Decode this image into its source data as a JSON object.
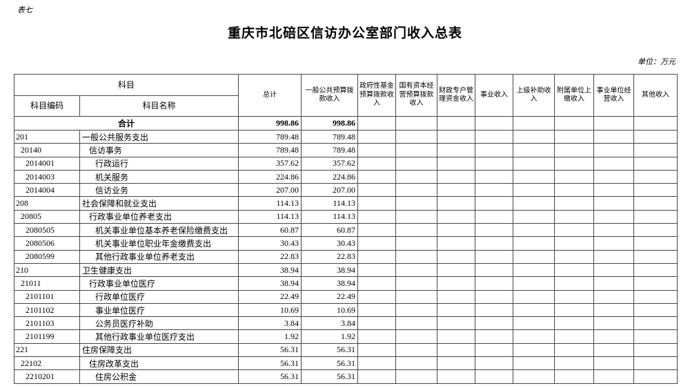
{
  "page": {
    "sheet_label": "表七",
    "title": "重庆市北碚区信访办公室部门收入总表",
    "unit_note": "单位：万元"
  },
  "colors": {
    "background": "#ffffff",
    "text": "#000000",
    "table_border": "#454545"
  },
  "table": {
    "header": {
      "subject_group": "科目",
      "subject_code": "科目编码",
      "subject_name": "科目名称",
      "value_columns": [
        "总计",
        "一般公共预算拨款收入",
        "政府性基金预算拨款收入",
        "国有资本经营预算拨款收入",
        "财政专户管理资金收入",
        "事业收入",
        "上级补助收入",
        "附属单位上缴收入",
        "事业单位经营收入",
        "其他收入"
      ]
    },
    "total_row": {
      "label": "合计",
      "values": [
        "998.86",
        "998.86",
        "",
        "",
        "",
        "",
        "",
        "",
        "",
        ""
      ]
    },
    "rows": [
      {
        "code": "201",
        "name": "一般公共服务支出",
        "level": 1,
        "values": [
          "789.48",
          "789.48"
        ]
      },
      {
        "code": "20140",
        "name": "信访事务",
        "level": 2,
        "values": [
          "789.48",
          "789.48"
        ]
      },
      {
        "code": "2014001",
        "name": "行政运行",
        "level": 3,
        "values": [
          "357.62",
          "357.62"
        ]
      },
      {
        "code": "2014003",
        "name": "机关服务",
        "level": 3,
        "values": [
          "224.86",
          "224.86"
        ]
      },
      {
        "code": "2014004",
        "name": "信访业务",
        "level": 3,
        "values": [
          "207.00",
          "207.00"
        ]
      },
      {
        "code": "208",
        "name": "社会保障和就业支出",
        "level": 1,
        "values": [
          "114.13",
          "114.13"
        ]
      },
      {
        "code": "20805",
        "name": "行政事业单位养老支出",
        "level": 2,
        "values": [
          "114.13",
          "114.13"
        ]
      },
      {
        "code": "2080505",
        "name": "机关事业单位基本养老保险缴费支出",
        "level": 3,
        "values": [
          "60.87",
          "60.87"
        ]
      },
      {
        "code": "2080506",
        "name": "机关事业单位职业年金缴费支出",
        "level": 3,
        "values": [
          "30.43",
          "30.43"
        ]
      },
      {
        "code": "2080599",
        "name": "其他行政事业单位养老支出",
        "level": 3,
        "values": [
          "22.83",
          "22.83"
        ]
      },
      {
        "code": "210",
        "name": "卫生健康支出",
        "level": 1,
        "values": [
          "38.94",
          "38.94"
        ]
      },
      {
        "code": "21011",
        "name": "行政事业单位医疗",
        "level": 2,
        "values": [
          "38.94",
          "38.94"
        ]
      },
      {
        "code": "2101101",
        "name": "行政单位医疗",
        "level": 3,
        "values": [
          "22.49",
          "22.49"
        ]
      },
      {
        "code": "2101102",
        "name": "事业单位医疗",
        "level": 3,
        "values": [
          "10.69",
          "10.69"
        ]
      },
      {
        "code": "2101103",
        "name": "公务员医疗补助",
        "level": 3,
        "values": [
          "3.84",
          "3.84"
        ]
      },
      {
        "code": "2101199",
        "name": "其他行政事业单位医疗支出",
        "level": 3,
        "values": [
          "1.92",
          "1.92"
        ]
      },
      {
        "code": "221",
        "name": "住房保障支出",
        "level": 1,
        "values": [
          "56.31",
          "56.31"
        ]
      },
      {
        "code": "22102",
        "name": "住房改革支出",
        "level": 2,
        "values": [
          "56.31",
          "56.31"
        ]
      },
      {
        "code": "2210201",
        "name": "住房公积金",
        "level": 3,
        "values": [
          "56.31",
          "56.31"
        ]
      }
    ]
  }
}
